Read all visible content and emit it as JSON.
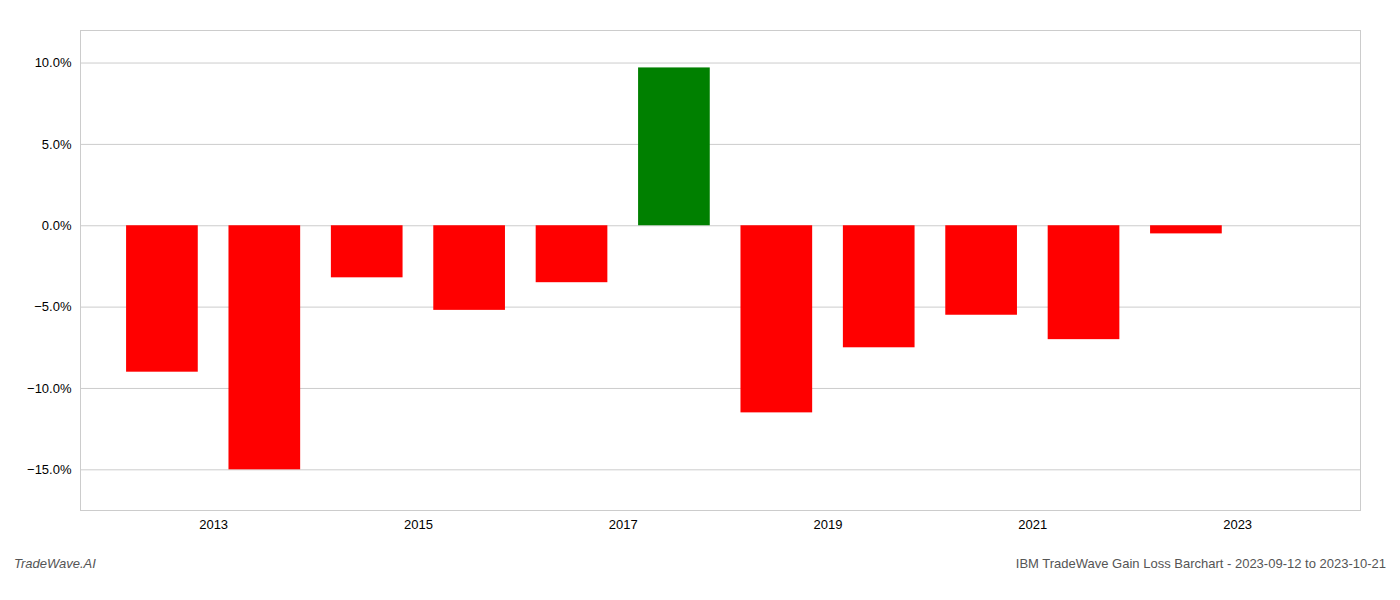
{
  "chart_data": {
    "type": "bar",
    "x": [
      2012.5,
      2013.5,
      2014.5,
      2015.5,
      2016.5,
      2017.5,
      2018.5,
      2019.5,
      2020.5,
      2021.5,
      2022.5
    ],
    "values": [
      -9.0,
      -15.0,
      -3.2,
      -5.2,
      -3.5,
      9.7,
      -11.5,
      -7.5,
      -5.5,
      -7.0,
      -0.5
    ],
    "colors": [
      "#ff0000",
      "#ff0000",
      "#ff0000",
      "#ff0000",
      "#ff0000",
      "#008000",
      "#ff0000",
      "#ff0000",
      "#ff0000",
      "#ff0000",
      "#ff0000"
    ],
    "xlim": [
      2011.7,
      2024.2
    ],
    "xticks": [
      2013,
      2015,
      2017,
      2019,
      2021,
      2023
    ],
    "ylim": [
      -17.5,
      12.0
    ],
    "yticks": [
      {
        "value": -15.0,
        "label": "−15.0%"
      },
      {
        "value": -10.0,
        "label": "−10.0%"
      },
      {
        "value": -5.0,
        "label": "−5.0%"
      },
      {
        "value": 0.0,
        "label": "0.0%"
      },
      {
        "value": 5.0,
        "label": "5.0%"
      },
      {
        "value": 10.0,
        "label": "10.0%"
      }
    ],
    "grid": true,
    "annotations": [
      "TradeWave.AI",
      "IBM TradeWave Gain Loss Barchart - 2023-09-12 to 2023-10-21"
    ]
  }
}
